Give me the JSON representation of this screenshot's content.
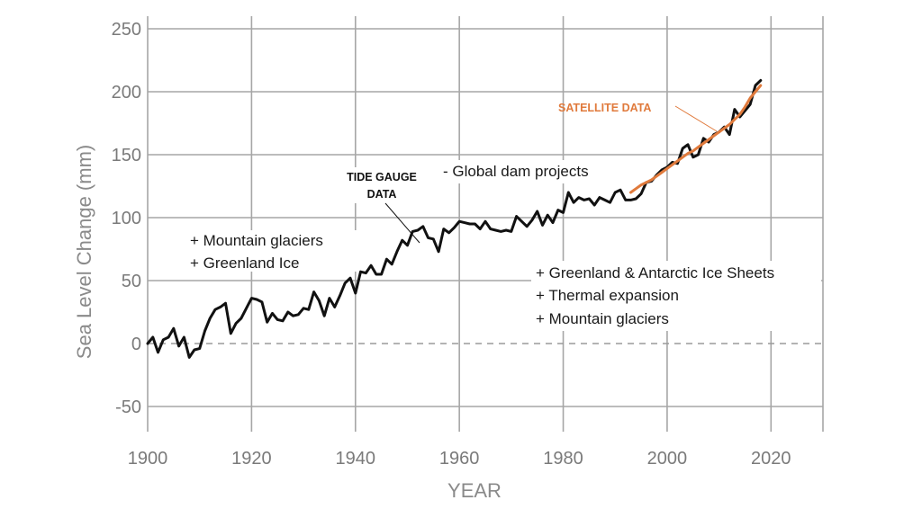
{
  "chart_data": {
    "type": "line",
    "xlabel": "YEAR",
    "ylabel": "Sea Level Change (mm)",
    "xlim": [
      1900,
      2030
    ],
    "ylim": [
      -70,
      260
    ],
    "xticks": [
      "1900",
      "1920",
      "1940",
      "1960",
      "1980",
      "2000",
      "2020"
    ],
    "yticks": [
      "250",
      "200",
      "150",
      "100",
      "50",
      "0",
      "-50"
    ],
    "grid": true,
    "zero_line": "dashed",
    "colors": {
      "tide": "#111111",
      "satellite": "#e07a3c",
      "grid": "#a6a6a6",
      "zero": "#9a9a9a"
    },
    "series": [
      {
        "name": "TIDE GAUGE DATA",
        "x": [
          1900,
          1901,
          1902,
          1903,
          1904,
          1905,
          1906,
          1907,
          1908,
          1909,
          1910,
          1911,
          1912,
          1913,
          1914,
          1915,
          1916,
          1917,
          1918,
          1919,
          1920,
          1921,
          1922,
          1923,
          1924,
          1925,
          1926,
          1927,
          1928,
          1929,
          1930,
          1931,
          1932,
          1933,
          1934,
          1935,
          1936,
          1937,
          1938,
          1939,
          1940,
          1941,
          1942,
          1943,
          1944,
          1945,
          1946,
          1947,
          1948,
          1949,
          1950,
          1951,
          1952,
          1953,
          1954,
          1955,
          1956,
          1957,
          1958,
          1959,
          1960,
          1961,
          1962,
          1963,
          1964,
          1965,
          1966,
          1967,
          1968,
          1969,
          1970,
          1971,
          1972,
          1973,
          1974,
          1975,
          1976,
          1977,
          1978,
          1979,
          1980,
          1981,
          1982,
          1983,
          1984,
          1985,
          1986,
          1987,
          1988,
          1989,
          1990,
          1991,
          1992,
          1993,
          1994,
          1995,
          1996,
          1997,
          1998,
          1999,
          2000,
          2001,
          2002,
          2003,
          2004,
          2005,
          2006,
          2007,
          2008,
          2009,
          2010,
          2011,
          2012,
          2013,
          2014,
          2015,
          2016,
          2017,
          2018
        ],
        "y": [
          0,
          5,
          -7,
          3,
          5,
          12,
          -2,
          5,
          -11,
          -5,
          -4,
          10,
          20,
          27,
          29,
          32,
          8,
          16,
          20,
          28,
          36,
          35,
          33,
          17,
          24,
          19,
          18,
          25,
          22,
          23,
          28,
          27,
          41,
          34,
          22,
          36,
          29,
          38,
          48,
          52,
          40,
          57,
          56,
          62,
          55,
          55,
          67,
          63,
          73,
          82,
          78,
          89,
          90,
          93,
          84,
          83,
          73,
          91,
          88,
          92,
          97,
          96,
          95,
          95,
          91,
          97,
          91,
          90,
          89,
          90,
          89,
          101,
          97,
          93,
          98,
          105,
          94,
          102,
          96,
          106,
          104,
          120,
          112,
          116,
          114,
          115,
          110,
          116,
          114,
          112,
          120,
          122,
          114,
          114,
          115,
          119,
          128,
          129,
          134,
          138,
          140,
          144,
          143,
          155,
          158,
          148,
          150,
          163,
          160,
          166,
          168,
          172,
          166,
          186,
          180,
          185,
          190,
          205,
          209
        ]
      },
      {
        "name": "SATELLITE DATA",
        "x": [
          1993,
          1994,
          1995,
          1996,
          1997,
          1998,
          1999,
          2000,
          2001,
          2002,
          2003,
          2004,
          2005,
          2006,
          2007,
          2008,
          2009,
          2010,
          2011,
          2012,
          2013,
          2014,
          2015,
          2016,
          2017,
          2018
        ],
        "y": [
          120,
          123,
          126,
          128,
          130,
          133,
          136,
          139,
          142,
          145,
          148,
          151,
          153,
          156,
          159,
          162,
          165,
          168,
          171,
          174,
          178,
          182,
          188,
          195,
          200,
          205
        ]
      }
    ]
  },
  "annotations": {
    "tide_label_line1": "TIDE GAUGE",
    "tide_label_line2": "DATA",
    "satellite_label": "SATELLITE DATA",
    "dam_projects": "- Global dam projects",
    "early_line1": "+ Mountain glaciers",
    "early_line2": "+ Greenland Ice",
    "late_line1": "+ Greenland & Antarctic Ice Sheets",
    "late_line2": "+ Thermal expansion",
    "late_line3": "+ Mountain glaciers"
  }
}
